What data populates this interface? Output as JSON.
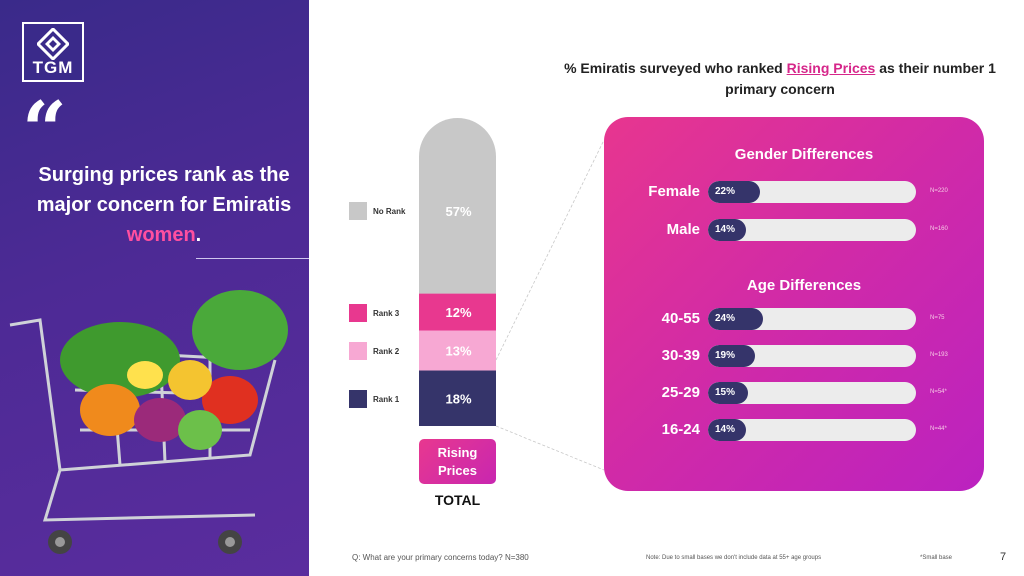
{
  "brand": {
    "logo_text": "TGM"
  },
  "left": {
    "quote_mark": "“",
    "headline_before": "Surging prices rank as the major concern for Emiratis ",
    "headline_highlight": "women",
    "headline_after": "."
  },
  "title": {
    "before": "% Emiratis surveyed who ranked ",
    "highlight": "Rising Prices",
    "after": " as their number 1 primary concern"
  },
  "chart_data": [
    {
      "type": "bar",
      "stacked": true,
      "title": "Rising Prices",
      "xlabel": "TOTAL",
      "categories": [
        "TOTAL"
      ],
      "series": [
        {
          "name": "Rank 1",
          "values": [
            18
          ],
          "label": "18%",
          "color": "#35346a"
        },
        {
          "name": "Rank 2",
          "values": [
            13
          ],
          "label": "13%",
          "color": "#f7a8d3"
        },
        {
          "name": "Rank 3",
          "values": [
            12
          ],
          "label": "12%",
          "color": "#e8388f"
        },
        {
          "name": "No Rank",
          "values": [
            57
          ],
          "label": "57%",
          "color": "#c8c8c8"
        }
      ],
      "ylim": [
        0,
        100
      ]
    },
    {
      "type": "bar",
      "orientation": "horizontal",
      "title": "Gender Differences",
      "categories": [
        "Female",
        "Male"
      ],
      "values": [
        22,
        14
      ],
      "labels": [
        "22%",
        "14%"
      ],
      "n_labels": [
        "N=220",
        "N=160"
      ],
      "xlim": [
        0,
        100
      ]
    },
    {
      "type": "bar",
      "orientation": "horizontal",
      "title": "Age Differences",
      "categories": [
        "40-55",
        "30-39",
        "25-29",
        "16-24"
      ],
      "values": [
        24,
        19,
        15,
        14
      ],
      "labels": [
        "24%",
        "19%",
        "15%",
        "14%"
      ],
      "n_labels": [
        "N=75",
        "N=193",
        "N=54*",
        "N=44*"
      ],
      "xlim": [
        0,
        100
      ]
    }
  ],
  "footer": {
    "question": "Q: What are your primary concerns today? N=380",
    "note": "Note: Due to small bases we don't include data at 55+ age groups",
    "small_base": "*Small base",
    "page": "7"
  },
  "colors": {
    "accent": "#e8388f",
    "navy": "#35346a",
    "purple": "#4d2a95"
  },
  "icons": {
    "logo": "diamond-logo-icon",
    "quote": "quote-icon",
    "cart": "shopping-cart-icon"
  }
}
